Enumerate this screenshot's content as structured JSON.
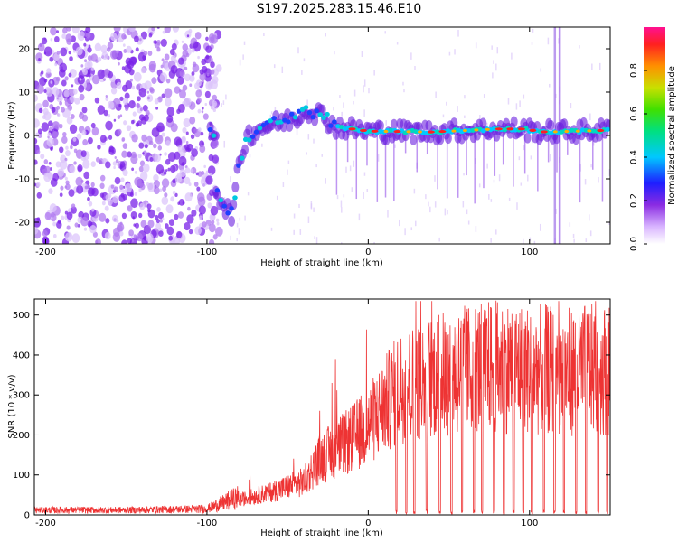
{
  "title": "S197.2025.283.15.46.E10",
  "chart_data": [
    {
      "type": "heatmap",
      "title": "S197.2025.283.15.46.E10",
      "xlabel": "Height of straight line (km)",
      "ylabel": "Frequency (Hz)",
      "xlim": [
        -207,
        150
      ],
      "ylim": [
        -25,
        25
      ],
      "xticks": [
        -200,
        -100,
        0,
        100
      ],
      "yticks": [
        -20,
        -10,
        0,
        10,
        20
      ],
      "colorbar": {
        "label": "Normalized spectral amplitude",
        "range": [
          0.0,
          1.0
        ],
        "ticks": [
          "0.0",
          "0.2",
          "0.4",
          "0.6",
          "0.8"
        ]
      },
      "track": [
        {
          "x": -95,
          "y": -12
        },
        {
          "x": -88,
          "y": -17
        },
        {
          "x": -84,
          "y": -18
        },
        {
          "x": -80,
          "y": -6
        },
        {
          "x": -75,
          "y": 0
        },
        {
          "x": -65,
          "y": 2
        },
        {
          "x": -55,
          "y": 3
        },
        {
          "x": -45,
          "y": 4
        },
        {
          "x": -38,
          "y": 6
        },
        {
          "x": -30,
          "y": 5
        },
        {
          "x": -20,
          "y": 2
        },
        {
          "x": 0,
          "y": 1
        },
        {
          "x": 40,
          "y": 0.8
        },
        {
          "x": 80,
          "y": 1.5
        },
        {
          "x": 95,
          "y": 1.5
        },
        {
          "x": 110,
          "y": 0.8
        },
        {
          "x": 150,
          "y": 1.2
        }
      ]
    },
    {
      "type": "line",
      "xlabel": "Height of straight line (km)",
      "ylabel": "SNR (10 * v/v)",
      "xlim": [
        -207,
        150
      ],
      "ylim": [
        0,
        540
      ],
      "xticks": [
        -200,
        -100,
        0,
        100
      ],
      "yticks": [
        0,
        100,
        200,
        300,
        400,
        500
      ],
      "series": [
        {
          "name": "SNR",
          "color": "#ee3333",
          "envelope_x": [
            -207,
            -150,
            -100,
            -80,
            -60,
            -40,
            -30,
            -20,
            -10,
            0,
            10,
            20,
            30,
            40,
            50,
            60,
            70,
            80,
            90,
            100,
            110,
            120,
            130,
            140,
            150
          ],
          "envelope_y": [
            12,
            12,
            15,
            45,
            70,
            100,
            170,
            200,
            230,
            270,
            330,
            390,
            400,
            420,
            430,
            440,
            450,
            450,
            450,
            440,
            440,
            430,
            440,
            440,
            440
          ]
        }
      ]
    }
  ]
}
